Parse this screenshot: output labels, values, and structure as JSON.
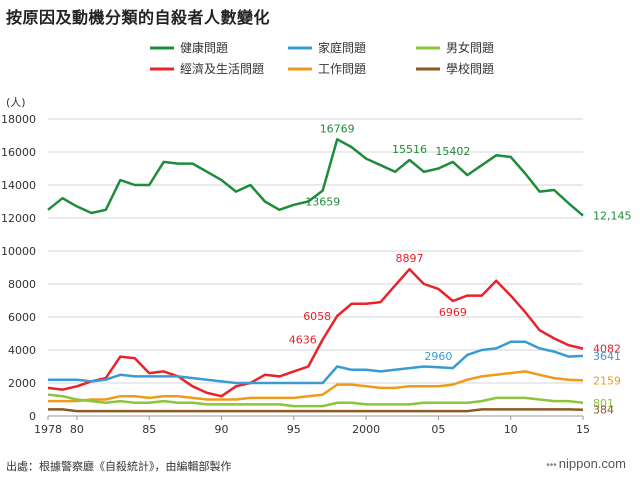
{
  "title": "按原因及動機分類的自殺者人數變化",
  "source": "出處：根據警察廳《自殺統計》，由編輯部製作",
  "brand": "nippon.com",
  "brand_dots": "•••",
  "chart_data": {
    "type": "line",
    "title": "按原因及動機分類的自殺者人數變化",
    "ylabel": "(人)",
    "xlabel": "",
    "ylim": [
      0,
      18000
    ],
    "yticks": [
      0,
      2000,
      4000,
      6000,
      8000,
      10000,
      12000,
      14000,
      16000,
      18000
    ],
    "xlim": [
      1978,
      2015
    ],
    "xticks": [
      {
        "value": 1978,
        "label": "1978"
      },
      {
        "value": 1980,
        "label": "80"
      },
      {
        "value": 1985,
        "label": "85"
      },
      {
        "value": 1990,
        "label": "90"
      },
      {
        "value": 1995,
        "label": "95"
      },
      {
        "value": 2000,
        "label": "2000"
      },
      {
        "value": 2005,
        "label": "05"
      },
      {
        "value": 2010,
        "label": "10"
      },
      {
        "value": 2015,
        "label": "15"
      }
    ],
    "grid": true,
    "legend_position": "top",
    "x": [
      1978,
      1979,
      1980,
      1981,
      1982,
      1983,
      1984,
      1985,
      1986,
      1987,
      1988,
      1989,
      1990,
      1991,
      1992,
      1993,
      1994,
      1995,
      1996,
      1997,
      1998,
      1999,
      2000,
      2001,
      2002,
      2003,
      2004,
      2005,
      2006,
      2007,
      2008,
      2009,
      2010,
      2011,
      2012,
      2013,
      2014,
      2015
    ],
    "series": [
      {
        "name": "健康問題",
        "color": "#1e8c3a",
        "values": [
          12500,
          13200,
          12700,
          12300,
          12500,
          14300,
          14000,
          14000,
          15400,
          15300,
          15300,
          14800,
          14300,
          13600,
          14000,
          13000,
          12500,
          12800,
          13000,
          13659,
          16769,
          16300,
          15600,
          15200,
          14800,
          15516,
          14800,
          15000,
          15402,
          14600,
          15200,
          15800,
          15700,
          14700,
          13600,
          13700,
          12900,
          12145
        ],
        "labels": [
          {
            "i": 19,
            "text": "13659",
            "pos": "below"
          },
          {
            "i": 20,
            "text": "16769",
            "pos": "above"
          },
          {
            "i": 25,
            "text": "15516",
            "pos": "above"
          },
          {
            "i": 28,
            "text": "15402",
            "pos": "above"
          },
          {
            "i": 37,
            "text": "12,145",
            "pos": "right"
          }
        ]
      },
      {
        "name": "經濟及生活問題",
        "color": "#e8232a",
        "values": [
          1700,
          1600,
          1800,
          2100,
          2300,
          3600,
          3500,
          2600,
          2700,
          2400,
          1800,
          1400,
          1200,
          1800,
          2000,
          2500,
          2400,
          2700,
          3000,
          4636,
          6058,
          6800,
          6800,
          6900,
          7900,
          8897,
          8000,
          7700,
          6969,
          7300,
          7300,
          8200,
          7300,
          6300,
          5200,
          4700,
          4300,
          4082
        ],
        "labels": [
          {
            "i": 19,
            "text": "4636",
            "pos": "left"
          },
          {
            "i": 20,
            "text": "6058",
            "pos": "left"
          },
          {
            "i": 25,
            "text": "8897",
            "pos": "above"
          },
          {
            "i": 28,
            "text": "6969",
            "pos": "below"
          },
          {
            "i": 37,
            "text": "4082",
            "pos": "right"
          }
        ]
      },
      {
        "name": "家庭問題",
        "color": "#3a9bd1",
        "values": [
          2200,
          2200,
          2200,
          2100,
          2200,
          2500,
          2400,
          2400,
          2400,
          2400,
          2300,
          2200,
          2100,
          2000,
          2000,
          2000,
          2000,
          2000,
          2000,
          2000,
          3000,
          2800,
          2800,
          2700,
          2800,
          2900,
          3000,
          2960,
          2900,
          3700,
          4000,
          4100,
          4500,
          4500,
          4100,
          3900,
          3600,
          3641
        ],
        "labels": [
          {
            "i": 27,
            "text": "2960",
            "pos": "above"
          },
          {
            "i": 37,
            "text": "3641",
            "pos": "right"
          }
        ]
      },
      {
        "name": "工作問題",
        "color": "#ee9b1b",
        "values": [
          900,
          900,
          900,
          1000,
          1000,
          1200,
          1200,
          1100,
          1200,
          1200,
          1100,
          1000,
          1000,
          1000,
          1100,
          1100,
          1100,
          1100,
          1200,
          1300,
          1900,
          1900,
          1800,
          1700,
          1700,
          1800,
          1800,
          1800,
          1900,
          2200,
          2400,
          2500,
          2600,
          2700,
          2500,
          2300,
          2200,
          2159
        ],
        "labels": [
          {
            "i": 37,
            "text": "2159",
            "pos": "right"
          }
        ]
      },
      {
        "name": "男女問題",
        "color": "#8cc43c",
        "values": [
          1300,
          1200,
          1000,
          900,
          800,
          900,
          800,
          800,
          900,
          800,
          800,
          700,
          700,
          700,
          700,
          700,
          700,
          600,
          600,
          600,
          800,
          800,
          700,
          700,
          700,
          700,
          800,
          800,
          800,
          800,
          900,
          1100,
          1100,
          1100,
          1000,
          900,
          900,
          801
        ],
        "labels": [
          {
            "i": 37,
            "text": "801",
            "pos": "right"
          }
        ]
      },
      {
        "name": "學校問題",
        "color": "#8b5a25",
        "values": [
          400,
          400,
          300,
          300,
          300,
          300,
          300,
          300,
          300,
          300,
          300,
          300,
          300,
          300,
          300,
          300,
          300,
          300,
          300,
          300,
          300,
          300,
          300,
          300,
          300,
          300,
          300,
          300,
          300,
          300,
          400,
          400,
          400,
          400,
          400,
          400,
          400,
          384
        ],
        "labels": [
          {
            "i": 37,
            "text": "384",
            "pos": "right"
          }
        ]
      }
    ]
  }
}
